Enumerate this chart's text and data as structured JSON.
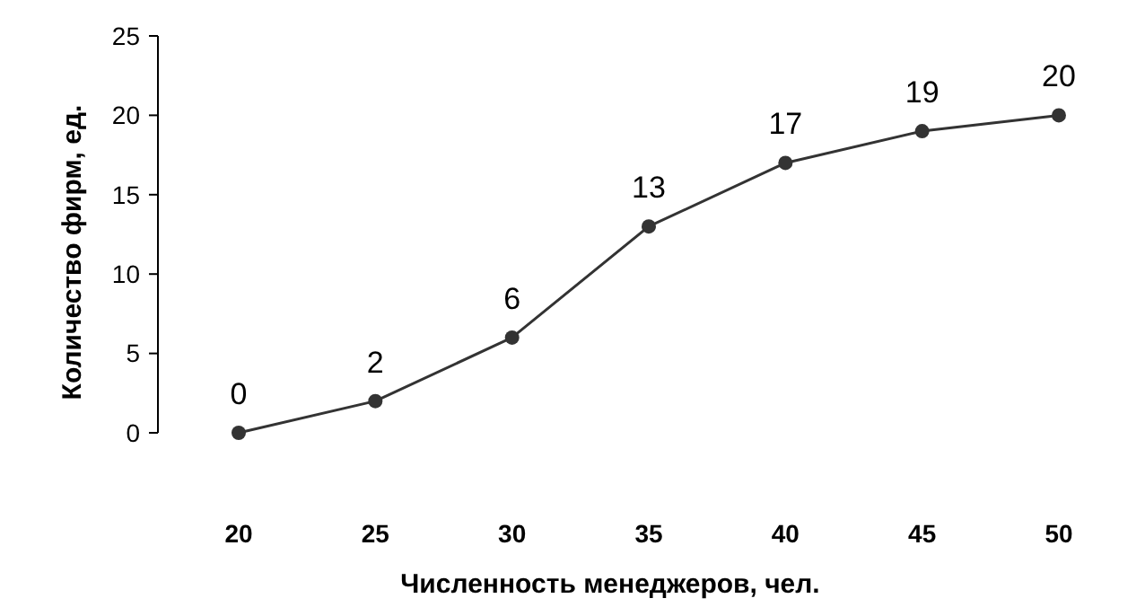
{
  "chart_data": {
    "type": "line",
    "xlabel": "Численность менеджеров, чел.",
    "ylabel": "Количество фирм, ед.",
    "categories": [
      "20",
      "25",
      "30",
      "35",
      "40",
      "45",
      "50"
    ],
    "series": [
      {
        "color": "#333333",
        "values": [
          0,
          2,
          6,
          13,
          17,
          19,
          20
        ]
      }
    ],
    "ylim": [
      0,
      25
    ],
    "yticks": [
      0,
      5,
      10,
      15,
      20,
      25
    ],
    "marker": "circle",
    "line_style": "solid",
    "data_labels": true,
    "grid": false
  }
}
